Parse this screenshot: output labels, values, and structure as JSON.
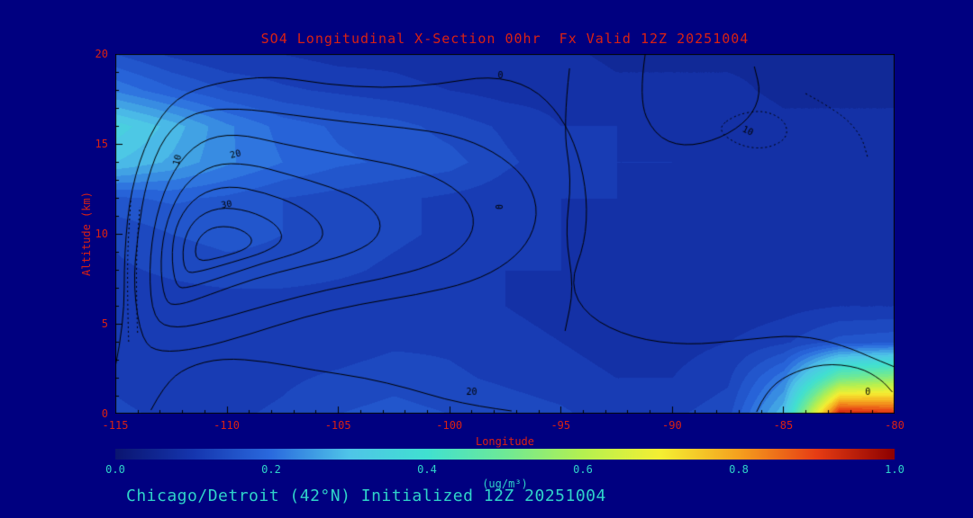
{
  "page": {
    "background": "#000080"
  },
  "header": {
    "title": "SO4 Longitudinal X-Section 00hr  Fx Valid 12Z 20251004",
    "title_color": "#da2113"
  },
  "footer": {
    "caption": "Chicago/Detroit (42°N) Initialized 12Z 20251004",
    "caption_color": "#2fd3c9"
  },
  "chart_data": {
    "type": "heatmap",
    "title": "SO4 Longitudinal X-Section 00hr  Fx Valid 12Z 20251004",
    "xlabel": "Longitude",
    "ylabel": "Altitude (km)",
    "x": {
      "label": "Longitude",
      "min": -115,
      "max": -80,
      "ticks": [
        -115,
        -110,
        -105,
        -100,
        -95,
        -90,
        -85,
        -80
      ],
      "minor_step": 1
    },
    "y": {
      "label": "Altitude (km)",
      "min": 0,
      "max": 20,
      "ticks": [
        0,
        5,
        10,
        15,
        20
      ],
      "minor_step": 1
    },
    "grid": {
      "lons": [
        -115,
        -112.5,
        -110,
        -107.5,
        -105,
        -102.5,
        -100,
        -97.5,
        -95,
        -92.5,
        -90,
        -87.5,
        -85,
        -82.5,
        -80
      ],
      "alts": [
        0,
        2,
        4,
        6,
        8,
        10,
        12,
        14,
        16,
        18,
        20
      ],
      "values": [
        [
          0.13,
          0.12,
          0.12,
          0.13,
          0.15,
          0.16,
          0.15,
          0.14,
          0.13,
          0.11,
          0.12,
          0.14,
          0.3,
          0.95,
          0.92
        ],
        [
          0.12,
          0.11,
          0.11,
          0.12,
          0.13,
          0.14,
          0.13,
          0.12,
          0.11,
          0.1,
          0.1,
          0.12,
          0.22,
          0.5,
          0.55
        ],
        [
          0.11,
          0.1,
          0.1,
          0.11,
          0.11,
          0.12,
          0.12,
          0.11,
          0.1,
          0.09,
          0.09,
          0.1,
          0.12,
          0.16,
          0.17
        ],
        [
          0.11,
          0.11,
          0.11,
          0.11,
          0.11,
          0.11,
          0.11,
          0.1,
          0.09,
          0.09,
          0.08,
          0.08,
          0.09,
          0.1,
          0.1
        ],
        [
          0.12,
          0.13,
          0.14,
          0.14,
          0.13,
          0.12,
          0.11,
          0.1,
          0.1,
          0.09,
          0.08,
          0.08,
          0.08,
          0.09,
          0.09
        ],
        [
          0.13,
          0.15,
          0.16,
          0.15,
          0.14,
          0.13,
          0.12,
          0.11,
          0.1,
          0.09,
          0.09,
          0.08,
          0.08,
          0.08,
          0.08
        ],
        [
          0.17,
          0.18,
          0.17,
          0.15,
          0.14,
          0.13,
          0.12,
          0.11,
          0.1,
          0.1,
          0.09,
          0.09,
          0.08,
          0.08,
          0.08
        ],
        [
          0.3,
          0.27,
          0.23,
          0.2,
          0.18,
          0.17,
          0.16,
          0.13,
          0.11,
          0.1,
          0.1,
          0.09,
          0.09,
          0.08,
          0.08
        ],
        [
          0.34,
          0.29,
          0.23,
          0.19,
          0.17,
          0.16,
          0.14,
          0.12,
          0.1,
          0.1,
          0.09,
          0.09,
          0.08,
          0.08,
          0.08
        ],
        [
          0.22,
          0.18,
          0.15,
          0.13,
          0.12,
          0.11,
          0.1,
          0.09,
          0.09,
          0.08,
          0.08,
          0.08,
          0.07,
          0.07,
          0.07
        ],
        [
          0.15,
          0.12,
          0.1,
          0.1,
          0.09,
          0.09,
          0.08,
          0.08,
          0.08,
          0.07,
          0.07,
          0.07,
          0.07,
          0.06,
          0.06
        ]
      ]
    },
    "levels_step": 0.025,
    "colormap": [
      [
        0.0,
        "#0a1470"
      ],
      [
        0.1,
        "#1535ae"
      ],
      [
        0.2,
        "#2a6ade"
      ],
      [
        0.3,
        "#4fc4e8"
      ],
      [
        0.4,
        "#40e0d0"
      ],
      [
        0.5,
        "#6ee996"
      ],
      [
        0.6,
        "#b4f050"
      ],
      [
        0.7,
        "#f5ef32"
      ],
      [
        0.8,
        "#f5a01e"
      ],
      [
        0.9,
        "#e63c14"
      ],
      [
        1.0,
        "#8c0000"
      ]
    ],
    "colorbar": {
      "min": 0.0,
      "max": 1.0,
      "ticks": [
        "0.0",
        "0.2",
        "0.4",
        "0.6",
        "0.8",
        "1.0"
      ],
      "unit_label": "(ug/m³)"
    },
    "contours": [
      {
        "v": 0,
        "dotted": false,
        "closed": false,
        "pts": [
          [
            -115,
            2.6
          ],
          [
            -114.6,
            5
          ],
          [
            -114.6,
            9
          ],
          [
            -114.3,
            12.5
          ],
          [
            -113.5,
            15.5
          ],
          [
            -112.3,
            17.6
          ],
          [
            -110.5,
            18.4
          ],
          [
            -108,
            18.8
          ],
          [
            -105.5,
            18.3
          ],
          [
            -103,
            18.1
          ],
          [
            -100.5,
            18.3
          ],
          [
            -98.2,
            18.8
          ],
          [
            -96.3,
            18.2
          ],
          [
            -95,
            16.6
          ],
          [
            -94.2,
            14.5
          ],
          [
            -93.8,
            12
          ],
          [
            -93.9,
            9.5
          ],
          [
            -94.6,
            7.2
          ],
          [
            -93.8,
            5.4
          ],
          [
            -91.8,
            4.2
          ],
          [
            -89.3,
            3.8
          ],
          [
            -86.8,
            4.1
          ],
          [
            -84.3,
            4.4
          ],
          [
            -82.3,
            3.8
          ],
          [
            -80.8,
            3.0
          ],
          [
            -80,
            2.6
          ]
        ]
      },
      {
        "v": 10,
        "dotted": false,
        "closed": true,
        "pts": [
          [
            -113.8,
            4.0
          ],
          [
            -114.2,
            7
          ],
          [
            -114,
            10
          ],
          [
            -113.6,
            13
          ],
          [
            -112.8,
            15.5
          ],
          [
            -111.5,
            16.8
          ],
          [
            -109.5,
            17.0
          ],
          [
            -107,
            16.6
          ],
          [
            -104.5,
            16.2
          ],
          [
            -102,
            15.9
          ],
          [
            -99.8,
            15.5
          ],
          [
            -98,
            14.6
          ],
          [
            -96.6,
            13.2
          ],
          [
            -96,
            11.5
          ],
          [
            -96.3,
            9.8
          ],
          [
            -97.3,
            8.4
          ],
          [
            -99,
            7.3
          ],
          [
            -101.5,
            6.6
          ],
          [
            -104,
            6.1
          ],
          [
            -106.5,
            5.4
          ],
          [
            -109,
            4.4
          ],
          [
            -111.3,
            3.6
          ],
          [
            -113,
            3.4
          ]
        ]
      },
      {
        "v": 20,
        "dotted": false,
        "closed": true,
        "pts": [
          [
            -113.3,
            5.2
          ],
          [
            -113.5,
            8
          ],
          [
            -113.2,
            11
          ],
          [
            -112.4,
            13.6
          ],
          [
            -111.2,
            15.2
          ],
          [
            -109.6,
            15.6
          ],
          [
            -107.5,
            15.0
          ],
          [
            -105,
            14.4
          ],
          [
            -102.6,
            13.9
          ],
          [
            -100.6,
            13.2
          ],
          [
            -99.2,
            12.0
          ],
          [
            -98.8,
            10.5
          ],
          [
            -99.4,
            9.2
          ],
          [
            -100.8,
            8.2
          ],
          [
            -103,
            7.5
          ],
          [
            -105.5,
            6.9
          ],
          [
            -108,
            6.1
          ],
          [
            -110.5,
            5.2
          ],
          [
            -112.3,
            4.7
          ]
        ]
      },
      {
        "v": 30,
        "dotted": false,
        "closed": true,
        "pts": [
          [
            -112.8,
            6.2
          ],
          [
            -113,
            8.5
          ],
          [
            -112.7,
            10.8
          ],
          [
            -111.9,
            12.8
          ],
          [
            -110.6,
            13.9
          ],
          [
            -109,
            13.9
          ],
          [
            -107.2,
            13.3
          ],
          [
            -105.3,
            12.6
          ],
          [
            -103.8,
            11.8
          ],
          [
            -103,
            10.7
          ],
          [
            -103.3,
            9.6
          ],
          [
            -104.6,
            8.8
          ],
          [
            -106.6,
            8.2
          ],
          [
            -108.8,
            7.5
          ],
          [
            -110.8,
            6.6
          ],
          [
            -112.2,
            6.0
          ]
        ]
      },
      {
        "v": 40,
        "dotted": false,
        "closed": true,
        "pts": [
          [
            -112.3,
            7.0
          ],
          [
            -112.5,
            9
          ],
          [
            -112.2,
            10.8
          ],
          [
            -111.3,
            12.2
          ],
          [
            -109.9,
            12.7
          ],
          [
            -108.3,
            12.3
          ],
          [
            -106.8,
            11.6
          ],
          [
            -105.8,
            10.7
          ],
          [
            -105.6,
            9.7
          ],
          [
            -106.6,
            9.0
          ],
          [
            -108.3,
            8.4
          ],
          [
            -110.2,
            7.6
          ],
          [
            -111.7,
            7.0
          ]
        ]
      },
      {
        "v": 50,
        "dotted": false,
        "closed": true,
        "pts": [
          [
            -111.9,
            7.8
          ],
          [
            -112,
            9.4
          ],
          [
            -111.5,
            10.8
          ],
          [
            -110.4,
            11.5
          ],
          [
            -109,
            11.3
          ],
          [
            -107.8,
            10.6
          ],
          [
            -107.4,
            9.7
          ],
          [
            -108.2,
            9.0
          ],
          [
            -109.8,
            8.4
          ],
          [
            -111.2,
            7.9
          ]
        ]
      },
      {
        "v": 60,
        "dotted": false,
        "closed": true,
        "pts": [
          [
            -111.4,
            8.4
          ],
          [
            -111.4,
            9.6
          ],
          [
            -110.7,
            10.4
          ],
          [
            -109.6,
            10.4
          ],
          [
            -108.8,
            9.8
          ],
          [
            -109,
            9.2
          ],
          [
            -110.2,
            8.7
          ]
        ]
      },
      {
        "v": 0,
        "dotted": false,
        "closed": false,
        "pts": [
          [
            -94.6,
            19.2
          ],
          [
            -94.9,
            16
          ],
          [
            -94.5,
            13
          ],
          [
            -94.8,
            10
          ],
          [
            -94.4,
            7
          ],
          [
            -94.8,
            4.6
          ]
        ]
      },
      {
        "v": 0,
        "dotted": false,
        "closed": false,
        "pts": [
          [
            -91.2,
            20
          ],
          [
            -91.5,
            17.5
          ],
          [
            -90.8,
            15.5
          ],
          [
            -89.5,
            14.8
          ],
          [
            -87.8,
            15.3
          ],
          [
            -86.5,
            16.4
          ],
          [
            -86.0,
            17.8
          ],
          [
            -86.3,
            19.3
          ]
        ]
      },
      {
        "v": 10,
        "dotted": true,
        "closed": true,
        "pts": [
          [
            -88,
            15.8
          ],
          [
            -87,
            14.9
          ],
          [
            -85.8,
            14.7
          ],
          [
            -84.8,
            15.3
          ],
          [
            -84.9,
            16.3
          ],
          [
            -85.9,
            16.9
          ],
          [
            -87.2,
            16.6
          ]
        ]
      },
      {
        "v": 0,
        "dotted": true,
        "closed": false,
        "pts": [
          [
            -84,
            17.8
          ],
          [
            -82.5,
            16.8
          ],
          [
            -81.5,
            15.5
          ],
          [
            -81.2,
            14.2
          ]
        ]
      },
      {
        "v": 20,
        "dotted": false,
        "closed": false,
        "pts": [
          [
            -113.4,
            0.2
          ],
          [
            -112.8,
            1.6
          ],
          [
            -111.8,
            2.6
          ],
          [
            -110.2,
            3.1
          ],
          [
            -108.2,
            2.9
          ],
          [
            -106,
            2.4
          ],
          [
            -103.8,
            2.0
          ],
          [
            -101.8,
            1.4
          ],
          [
            -100.2,
            0.8
          ],
          [
            -98.6,
            0.4
          ],
          [
            -97.2,
            0.15
          ]
        ]
      },
      {
        "v": 0,
        "dotted": false,
        "closed": false,
        "pts": [
          [
            -86.2,
            0.1
          ],
          [
            -85.8,
            1.2
          ],
          [
            -84.8,
            2.2
          ],
          [
            -83.2,
            2.8
          ],
          [
            -81.6,
            2.6
          ],
          [
            -80.6,
            1.9
          ],
          [
            -80.1,
            1.2
          ]
        ]
      },
      {
        "v": 0,
        "dotted": true,
        "closed": false,
        "pts": [
          [
            -114.4,
            4
          ],
          [
            -114.5,
            8
          ],
          [
            -114.3,
            12
          ]
        ]
      },
      {
        "v": 0,
        "dotted": true,
        "closed": false,
        "pts": [
          [
            -114.0,
            4.5
          ],
          [
            -114.1,
            8
          ],
          [
            -113.9,
            11.5
          ]
        ]
      }
    ],
    "contour_labels": [
      {
        "text": "0",
        "lon": -97.7,
        "alt": 18.8,
        "rot": 0
      },
      {
        "text": "0",
        "lon": -97.7,
        "alt": 11.5,
        "rot": -90
      },
      {
        "text": "10",
        "lon": -112.2,
        "alt": 14.1,
        "rot": -75
      },
      {
        "text": "20",
        "lon": -109.6,
        "alt": 14.4,
        "rot": -15
      },
      {
        "text": "30",
        "lon": -110.0,
        "alt": 11.6,
        "rot": -10
      },
      {
        "text": "20",
        "lon": -99.0,
        "alt": 1.2,
        "rot": 0
      },
      {
        "text": "0",
        "lon": -81.2,
        "alt": 1.2,
        "rot": 0
      },
      {
        "text": "10",
        "lon": -86.6,
        "alt": 15.7,
        "rot": 25
      }
    ],
    "legend": "none",
    "grid_lines": false
  }
}
